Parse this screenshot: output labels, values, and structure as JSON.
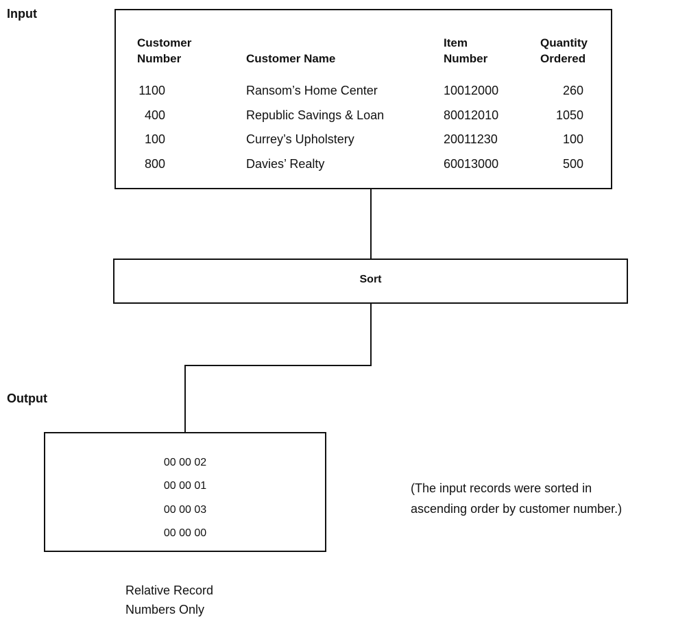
{
  "input_label": "Input",
  "output_label": "Output",
  "input_table": {
    "headers": {
      "customer_number": "Customer\nNumber",
      "customer_name": "Customer Name",
      "item_number": "Item\nNumber",
      "quantity_ordered": "Quantity\nOrdered"
    },
    "rows": [
      {
        "customer_number": "1100",
        "customer_name": "Ransom’s Home Center",
        "item_number": "10012000",
        "quantity_ordered": "260"
      },
      {
        "customer_number": "400",
        "customer_name": "Republic Savings & Loan",
        "item_number": "80012010",
        "quantity_ordered": "1050"
      },
      {
        "customer_number": "100",
        "customer_name": "Currey’s Upholstery",
        "item_number": "20011230",
        "quantity_ordered": "100"
      },
      {
        "customer_number": "800",
        "customer_name": "Davies’ Realty",
        "item_number": "60013000",
        "quantity_ordered": "500"
      }
    ]
  },
  "sort_label": "Sort",
  "output_records": [
    "00 00 02",
    "00 00 01",
    "00 00 03",
    "00 00 00"
  ],
  "note": "(The input records were sorted in\nascending order by customer number.)",
  "caption": "Relative Record\nNumbers Only"
}
